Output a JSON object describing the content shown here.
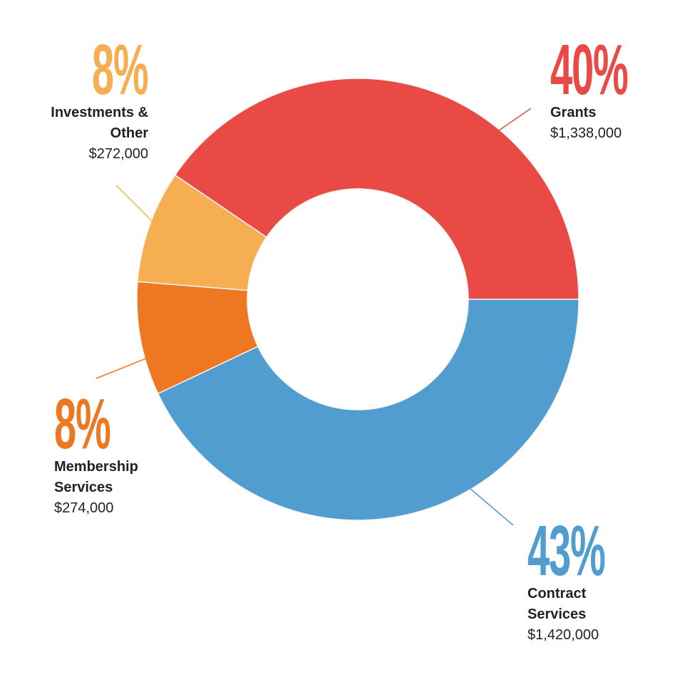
{
  "chart_data": {
    "type": "donut",
    "categories": [
      "Grants",
      "Investments & Other",
      "Membership Services",
      "Contract Services"
    ],
    "values": [
      1338000,
      272000,
      274000,
      1420000
    ],
    "value_labels": [
      "$1,338,000",
      "$272,000",
      "$274,000",
      "$1,420,000"
    ],
    "percent_labels": [
      "40%",
      "8%",
      "8%",
      "43%"
    ],
    "colors": [
      "#ea4a45",
      "#f5ae52",
      "#ee7722",
      "#519dcf"
    ]
  }
}
